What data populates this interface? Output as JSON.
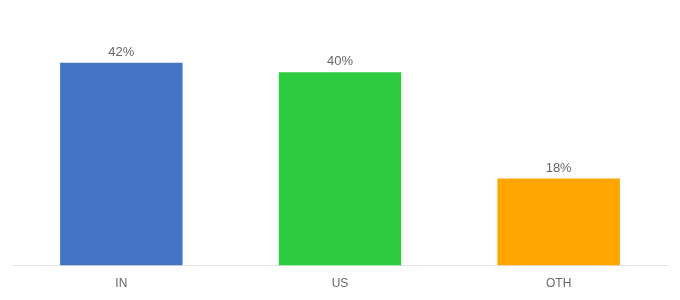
{
  "chart_data": {
    "type": "bar",
    "categories": [
      "IN",
      "US",
      "OTH"
    ],
    "values": [
      42,
      40,
      18
    ],
    "value_labels": [
      "42%",
      "40%",
      "18%"
    ],
    "colors": [
      "#4472C4",
      "#2ECC40",
      "#FFA500"
    ],
    "ylim": [
      0,
      50
    ],
    "grid": false,
    "data_labels": true,
    "tick_labels": "x"
  }
}
